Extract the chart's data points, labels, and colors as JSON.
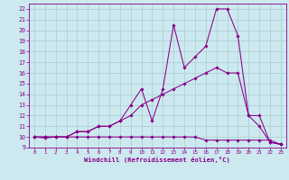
{
  "bg_color": "#cde9f0",
  "line_color": "#880088",
  "grid_color": "#aacccc",
  "xlabel": "Windchill (Refroidissement éolien,°C)",
  "xlim": [
    -0.5,
    23.5
  ],
  "ylim": [
    9,
    22.5
  ],
  "xticks": [
    0,
    1,
    2,
    3,
    4,
    5,
    6,
    7,
    8,
    9,
    10,
    11,
    12,
    13,
    14,
    15,
    16,
    17,
    18,
    19,
    20,
    21,
    22,
    23
  ],
  "yticks": [
    9,
    10,
    11,
    12,
    13,
    14,
    15,
    16,
    17,
    18,
    19,
    20,
    21,
    22
  ],
  "series": [
    {
      "x": [
        0,
        1,
        2,
        3,
        4,
        5,
        6,
        7,
        8,
        9,
        10,
        11,
        12,
        13,
        14,
        15,
        16,
        17,
        18,
        19,
        20,
        21,
        22,
        23
      ],
      "y": [
        10,
        9.9,
        10,
        10,
        10.5,
        10.5,
        11,
        11,
        11.5,
        13,
        14.5,
        11.5,
        14.5,
        20.5,
        16.5,
        17.5,
        18.5,
        22,
        22,
        19.5,
        12,
        11,
        9.5,
        9.3
      ]
    },
    {
      "x": [
        0,
        1,
        2,
        3,
        4,
        5,
        6,
        7,
        8,
        9,
        10,
        11,
        12,
        13,
        14,
        15,
        16,
        17,
        18,
        19,
        20,
        21,
        22,
        23
      ],
      "y": [
        10,
        10,
        10,
        10,
        10.5,
        10.5,
        11,
        11,
        11.5,
        12,
        13,
        13.5,
        14,
        14.5,
        15,
        15.5,
        16,
        16.5,
        16,
        16,
        12,
        12,
        9.5,
        9.3
      ]
    },
    {
      "x": [
        0,
        1,
        2,
        3,
        4,
        5,
        6,
        7,
        8,
        9,
        10,
        11,
        12,
        13,
        14,
        15,
        16,
        17,
        18,
        19,
        20,
        21,
        22,
        23
      ],
      "y": [
        10,
        10,
        10,
        10,
        10,
        10,
        10,
        10,
        10,
        10,
        10,
        10,
        10,
        10,
        10,
        10,
        9.7,
        9.7,
        9.7,
        9.7,
        9.7,
        9.7,
        9.7,
        9.3
      ]
    }
  ]
}
